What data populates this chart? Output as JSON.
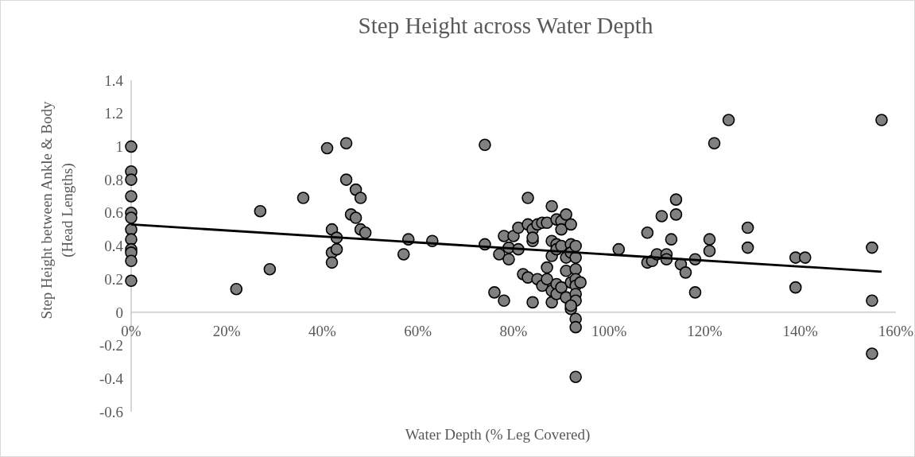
{
  "chart_data": {
    "type": "scatter",
    "title": "Step Height across Water Depth",
    "xlabel": "Water Depth (% Leg Covered)",
    "ylabel": "Step Height between Ankle & Body (Head Lengths)",
    "xlim": [
      0,
      1.6
    ],
    "ylim": [
      -0.6,
      1.4
    ],
    "xticks": [
      {
        "value": 0,
        "label": "0%"
      },
      {
        "value": 0.2,
        "label": "20%"
      },
      {
        "value": 0.4,
        "label": "40%"
      },
      {
        "value": 0.6,
        "label": "60%"
      },
      {
        "value": 0.8,
        "label": "80%"
      },
      {
        "value": 1,
        "label": "100%"
      },
      {
        "value": 1.2,
        "label": "120%"
      },
      {
        "value": 1.4,
        "label": "140%"
      },
      {
        "value": 1.6,
        "label": "160%"
      }
    ],
    "yticks": [
      -0.6,
      -0.4,
      -0.2,
      0,
      0.2,
      0.4,
      0.6,
      0.8,
      1,
      1.2,
      1.4
    ],
    "grid": false,
    "series": [
      {
        "marker": "circle",
        "color": "#808080",
        "x": [
          0,
          0,
          0,
          0,
          0,
          0,
          0,
          0,
          0,
          0,
          0,
          0,
          0.22,
          0.27,
          0.29,
          0.36,
          0.41,
          0.45,
          0.42,
          0.42,
          0.43,
          0.43,
          0.42,
          0.45,
          0.46,
          0.47,
          0.47,
          0.48,
          0.48,
          0.49,
          0.57,
          0.58,
          0.63,
          0.74,
          0.74,
          0.76,
          0.78,
          0.77,
          0.78,
          0.79,
          0.79,
          0.8,
          0.81,
          0.81,
          0.82,
          0.83,
          0.83,
          0.83,
          0.84,
          0.84,
          0.84,
          0.84,
          0.85,
          0.85,
          0.86,
          0.86,
          0.87,
          0.87,
          0.87,
          0.88,
          0.88,
          0.88,
          0.88,
          0.88,
          0.89,
          0.89,
          0.89,
          0.89,
          0.89,
          0.9,
          0.9,
          0.9,
          0.9,
          0.91,
          0.91,
          0.91,
          0.91,
          0.92,
          0.92,
          0.92,
          0.92,
          0.92,
          0.93,
          0.93,
          0.93,
          0.93,
          0.93,
          0.93,
          0.93,
          0.93,
          0.93,
          0.93,
          0.94,
          0.92,
          1.02,
          1.08,
          1.08,
          1.09,
          1.1,
          1.11,
          1.12,
          1.12,
          1.13,
          1.14,
          1.14,
          1.15,
          1.16,
          1.18,
          1.18,
          1.21,
          1.21,
          1.22,
          1.25,
          1.29,
          1.29,
          1.39,
          1.39,
          1.41,
          1.55,
          1.55,
          1.55,
          1.57
        ],
        "values": [
          1.0,
          0.85,
          0.8,
          0.7,
          0.6,
          0.57,
          0.5,
          0.44,
          0.38,
          0.36,
          0.31,
          0.19,
          0.14,
          0.61,
          0.26,
          0.69,
          0.99,
          1.02,
          0.5,
          0.36,
          0.45,
          0.38,
          0.3,
          0.8,
          0.59,
          0.57,
          0.74,
          0.69,
          0.5,
          0.48,
          0.35,
          0.44,
          0.43,
          1.01,
          0.41,
          0.12,
          0.07,
          0.35,
          0.46,
          0.32,
          0.39,
          0.46,
          0.51,
          0.38,
          0.23,
          0.53,
          0.69,
          0.21,
          0.5,
          0.43,
          0.45,
          0.06,
          0.2,
          0.53,
          0.16,
          0.54,
          0.27,
          0.2,
          0.54,
          0.64,
          0.43,
          0.34,
          0.13,
          0.06,
          0.56,
          0.41,
          0.38,
          0.17,
          0.11,
          0.55,
          0.5,
          0.4,
          0.15,
          0.59,
          0.33,
          0.25,
          0.09,
          0.53,
          0.41,
          0.36,
          0.02,
          0.18,
          0.4,
          0.33,
          0.26,
          0.2,
          0.16,
          0.11,
          0.07,
          -0.04,
          -0.09,
          -0.39,
          0.18,
          0.04,
          0.38,
          0.48,
          0.3,
          0.31,
          0.35,
          0.58,
          0.35,
          0.32,
          0.44,
          0.68,
          0.59,
          0.29,
          0.24,
          0.32,
          0.12,
          0.37,
          0.44,
          1.02,
          1.16,
          0.51,
          0.39,
          0.15,
          0.33,
          0.33,
          0.39,
          0.07,
          -0.25,
          1.16
        ]
      },
      {
        "type": "line",
        "marker": "none",
        "color": "#000000",
        "x": [
          0,
          1.57
        ],
        "values": [
          0.53,
          0.245
        ]
      }
    ]
  }
}
